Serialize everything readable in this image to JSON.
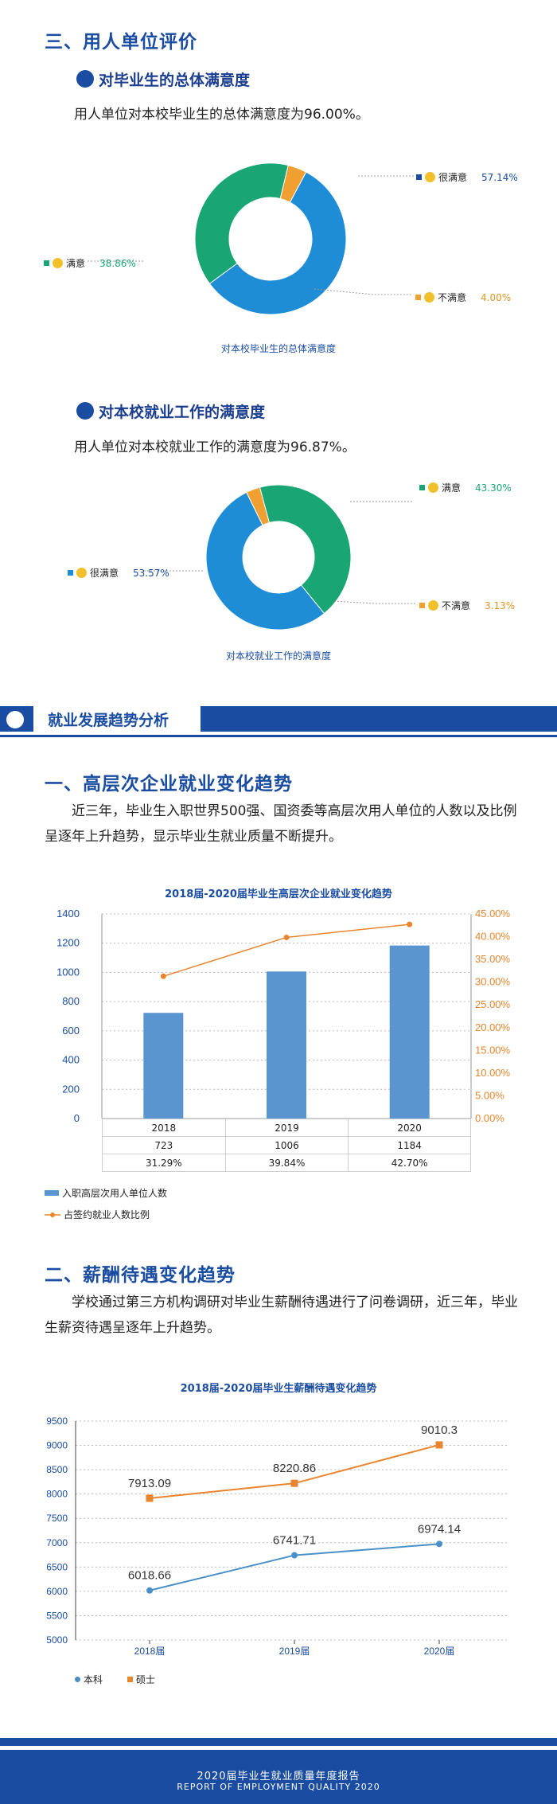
{
  "section3": {
    "title": "三、用人单位评价",
    "sub1": {
      "title": "对毕业生的总体满意度",
      "text": "用人单位对本校毕业生的总体满意度为96.00%。",
      "caption": "对本校毕业生的总体满意度",
      "legend": [
        {
          "label": "很满意",
          "value": "57.14%",
          "color": "#1f8dd6"
        },
        {
          "label": "满意",
          "value": "38.86%",
          "color": "#1aa674"
        },
        {
          "label": "不满意",
          "value": "4.00%",
          "color": "#f0a030"
        }
      ]
    },
    "sub2": {
      "title": "对本校就业工作的满意度",
      "text": "用人单位对本校就业工作的满意度为96.87%。",
      "caption": "对本校就业工作的满意度",
      "legend": [
        {
          "label": "满意",
          "value": "43.30%",
          "color": "#1aa674"
        },
        {
          "label": "很满意",
          "value": "53.57%",
          "color": "#1f8dd6"
        },
        {
          "label": "不满意",
          "value": "3.13%",
          "color": "#f0a030"
        }
      ]
    }
  },
  "banner": {
    "title": "就业发展趋势分析"
  },
  "section1": {
    "title": "一、高层次企业就业变化趋势",
    "text": "近三年，毕业生入职世界500强、国资委等高层次用人单位的人数以及比例呈逐年上升趋势，显示毕业生就业质量不断提升。",
    "chart_title": "2018届-2020届毕业生高层次企业就业变化趋势",
    "legend_bar": "入职高层次用人单位人数",
    "legend_line": "占签约就业人数比例"
  },
  "section2": {
    "title": "二、薪酬待遇变化趋势",
    "text": "学校通过第三方机构调研对毕业生薪酬待遇进行了问卷调研，近三年，毕业生薪资待遇呈逐年上升趋势。",
    "chart_title": "2018届-2020届毕业生薪酬待遇变化趋势",
    "legend_1": "本科",
    "legend_2": "硕士"
  },
  "footer": {
    "cn": "2020届毕业生就业质量年度报告",
    "en": "REPORT OF EMPLOYMENT QUALITY 2020"
  },
  "chart_data": [
    {
      "type": "pie",
      "title": "对本校毕业生的总体满意度",
      "categories": [
        "很满意",
        "满意",
        "不满意"
      ],
      "values": [
        57.14,
        38.86,
        4.0
      ],
      "colors": [
        "#1f8dd6",
        "#1aa674",
        "#f0a030"
      ]
    },
    {
      "type": "pie",
      "title": "对本校就业工作的满意度",
      "categories": [
        "满意",
        "很满意",
        "不满意"
      ],
      "values": [
        43.3,
        53.57,
        3.13
      ],
      "colors": [
        "#1aa674",
        "#1f8dd6",
        "#f0a030"
      ]
    },
    {
      "type": "bar",
      "title": "2018届-2020届毕业生高层次企业就业变化趋势",
      "categories": [
        "2018",
        "2019",
        "2020"
      ],
      "series": [
        {
          "name": "入职高层次用人单位人数",
          "type": "bar",
          "values": [
            723,
            1006,
            1184
          ],
          "color": "#5b95cf"
        },
        {
          "name": "占签约就业人数比例",
          "type": "line",
          "values": [
            31.29,
            39.84,
            42.7
          ],
          "labels": [
            "31.29%",
            "39.84%",
            "42.70%"
          ],
          "color": "#e8852e"
        }
      ],
      "ylim": [
        0,
        1400
      ],
      "y_ticks": [
        "0",
        "200",
        "400",
        "600",
        "800",
        "1000",
        "1200",
        "1400"
      ],
      "y2lim": [
        0,
        45
      ],
      "y2_ticks": [
        "0.00%",
        "5.00%",
        "10.00%",
        "15.00%",
        "20.00%",
        "25.00%",
        "30.00%",
        "35.00%",
        "40.00%",
        "45.00%"
      ],
      "grid": true
    },
    {
      "type": "line",
      "title": "2018届-2020届毕业生薪酬待遇变化趋势",
      "categories": [
        "2018届",
        "2019届",
        "2020届"
      ],
      "series": [
        {
          "name": "本科",
          "values": [
            6018.66,
            6741.71,
            6974.14
          ],
          "labels": [
            "6018.66",
            "6741.71",
            "6974.14"
          ],
          "color": "#4a90c8"
        },
        {
          "name": "硕士",
          "values": [
            7913.09,
            8220.86,
            9010.3
          ],
          "labels": [
            "7913.09",
            "8220.86",
            "9010.3"
          ],
          "color": "#e8852e"
        }
      ],
      "ylim": [
        5000,
        9500
      ],
      "y_ticks": [
        "5000",
        "5500",
        "6000",
        "6500",
        "7000",
        "7500",
        "8000",
        "8500",
        "9000",
        "9500"
      ],
      "grid": true
    }
  ]
}
